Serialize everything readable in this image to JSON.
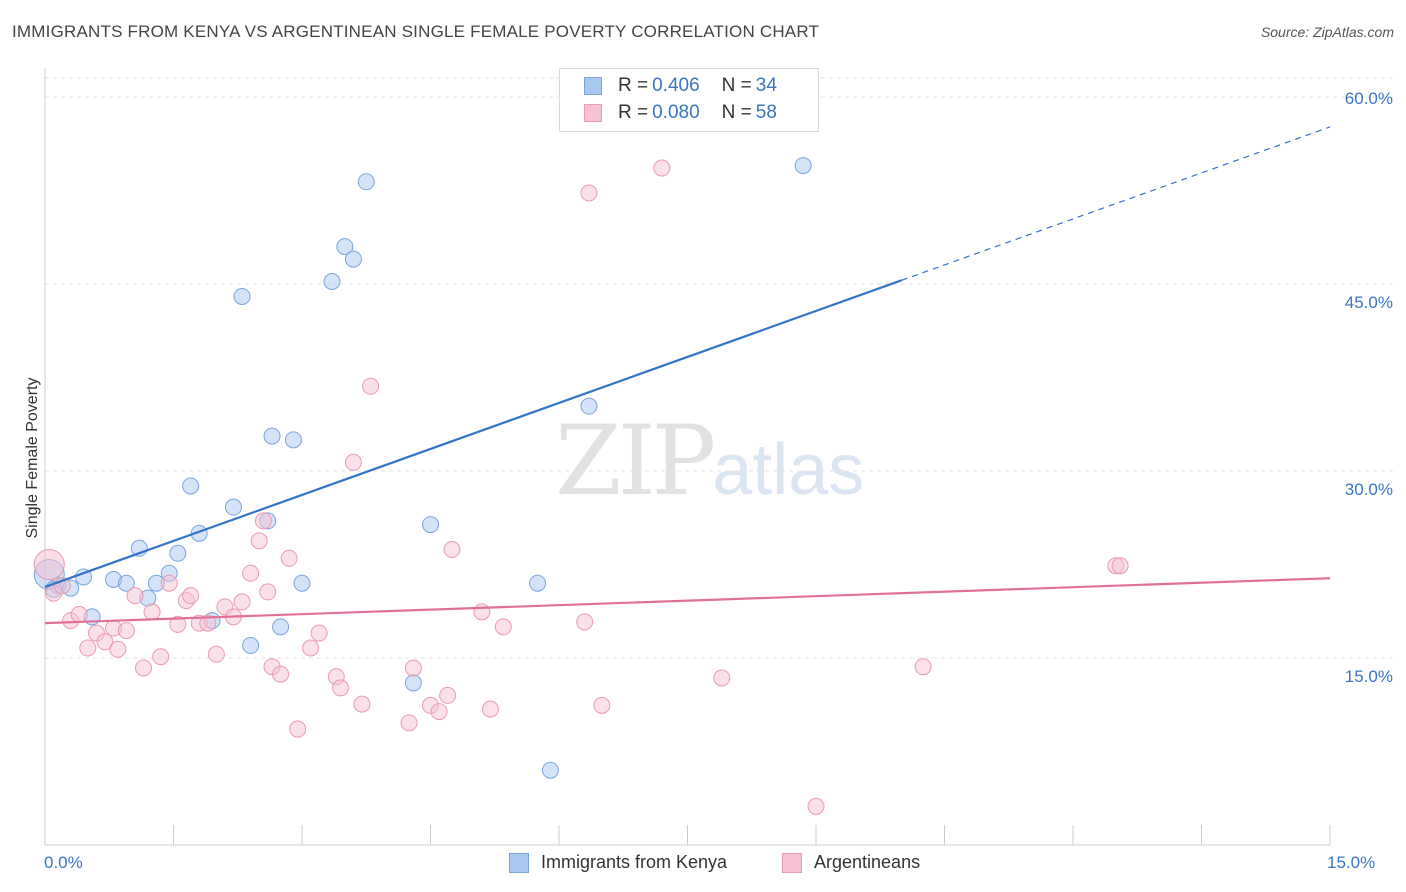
{
  "title": "IMMIGRANTS FROM KENYA VS ARGENTINEAN SINGLE FEMALE POVERTY CORRELATION CHART",
  "source": "Source: ZipAtlas.com",
  "watermark": {
    "zip": "ZIP",
    "atlas": "atlas"
  },
  "legend_top": [
    {
      "r_label": "R =",
      "r_value": "0.406",
      "n_label": "N =",
      "n_value": "34",
      "color": "#a9c8ef",
      "border": "#7aa6dd"
    },
    {
      "r_label": "R =",
      "r_value": "0.080",
      "n_label": "N =",
      "n_value": "58",
      "color": "#f6c1d3",
      "border": "#e99ab5"
    }
  ],
  "chart_data": {
    "type": "scatter",
    "title": "IMMIGRANTS FROM KENYA VS ARGENTINEAN SINGLE FEMALE POVERTY CORRELATION CHART",
    "xlabel": "",
    "ylabel": "Single Female Poverty",
    "xlim": [
      0,
      15
    ],
    "ylim": [
      0,
      60
    ],
    "x_tick_labels": [
      "0.0%",
      "15.0%"
    ],
    "y_ticks": [
      15,
      30,
      45,
      60
    ],
    "y_tick_labels": [
      "15.0%",
      "30.0%",
      "45.0%",
      "60.0%"
    ],
    "grid": true,
    "legend_position": "top-center",
    "series": [
      {
        "name": "Immigrants from Kenya",
        "color": "#a9c8ef",
        "line_color": "#3373c9",
        "points": [
          [
            0.05,
            21.7
          ],
          [
            0.15,
            20.8
          ],
          [
            0.3,
            20.6
          ],
          [
            0.45,
            21.5
          ],
          [
            0.55,
            18.3
          ],
          [
            0.8,
            21.3
          ],
          [
            0.95,
            21.0
          ],
          [
            1.1,
            23.8
          ],
          [
            1.2,
            19.8
          ],
          [
            1.3,
            21.0
          ],
          [
            1.45,
            21.8
          ],
          [
            1.55,
            23.4
          ],
          [
            1.7,
            28.8
          ],
          [
            1.8,
            25.0
          ],
          [
            1.95,
            18.0
          ],
          [
            2.2,
            27.1
          ],
          [
            2.3,
            44.0
          ],
          [
            2.4,
            16.0
          ],
          [
            2.6,
            26.0
          ],
          [
            2.65,
            32.8
          ],
          [
            2.75,
            17.5
          ],
          [
            2.9,
            32.5
          ],
          [
            3.0,
            21.0
          ],
          [
            3.35,
            45.2
          ],
          [
            3.5,
            48.0
          ],
          [
            3.6,
            47.0
          ],
          [
            3.75,
            53.2
          ],
          [
            4.3,
            13.0
          ],
          [
            4.5,
            25.7
          ],
          [
            5.75,
            21.0
          ],
          [
            5.9,
            6.0
          ],
          [
            6.35,
            35.2
          ],
          [
            8.85,
            54.5
          ],
          [
            0.1,
            20.5
          ]
        ],
        "trend": {
          "x": [
            0,
            10.0
          ],
          "y": [
            20.7,
            45.3
          ]
        },
        "trend_dashed": {
          "x": [
            10.0,
            15.0
          ],
          "y": [
            45.3,
            57.6
          ]
        }
      },
      {
        "name": "Argentineans",
        "color": "#f6c1d3",
        "line_color": "#e07099",
        "points": [
          [
            0.05,
            22.5
          ],
          [
            0.1,
            20.2
          ],
          [
            0.2,
            20.8
          ],
          [
            0.3,
            18.0
          ],
          [
            0.4,
            18.5
          ],
          [
            0.5,
            15.8
          ],
          [
            0.6,
            17.0
          ],
          [
            0.7,
            16.3
          ],
          [
            0.8,
            17.4
          ],
          [
            0.85,
            15.7
          ],
          [
            0.95,
            17.2
          ],
          [
            1.05,
            20.0
          ],
          [
            1.15,
            14.2
          ],
          [
            1.25,
            18.7
          ],
          [
            1.35,
            15.1
          ],
          [
            1.45,
            21.0
          ],
          [
            1.55,
            17.7
          ],
          [
            1.65,
            19.6
          ],
          [
            1.7,
            20.0
          ],
          [
            1.8,
            17.8
          ],
          [
            1.9,
            17.8
          ],
          [
            2.0,
            15.3
          ],
          [
            2.1,
            19.1
          ],
          [
            2.2,
            18.3
          ],
          [
            2.3,
            19.5
          ],
          [
            2.4,
            21.8
          ],
          [
            2.5,
            24.4
          ],
          [
            2.55,
            26.0
          ],
          [
            2.6,
            20.3
          ],
          [
            2.65,
            14.3
          ],
          [
            2.75,
            13.7
          ],
          [
            2.85,
            23.0
          ],
          [
            2.95,
            9.3
          ],
          [
            3.1,
            15.8
          ],
          [
            3.2,
            17.0
          ],
          [
            3.4,
            13.5
          ],
          [
            3.45,
            12.6
          ],
          [
            3.6,
            30.7
          ],
          [
            3.7,
            11.3
          ],
          [
            3.8,
            36.8
          ],
          [
            4.25,
            9.8
          ],
          [
            4.3,
            14.2
          ],
          [
            4.5,
            11.2
          ],
          [
            4.6,
            10.7
          ],
          [
            4.7,
            12.0
          ],
          [
            4.75,
            23.7
          ],
          [
            5.1,
            18.7
          ],
          [
            5.2,
            10.9
          ],
          [
            5.35,
            17.5
          ],
          [
            6.3,
            17.9
          ],
          [
            6.35,
            52.3
          ],
          [
            6.5,
            11.2
          ],
          [
            7.2,
            54.3
          ],
          [
            7.9,
            13.4
          ],
          [
            9.0,
            3.1
          ],
          [
            10.25,
            14.3
          ],
          [
            12.5,
            22.4
          ],
          [
            12.55,
            22.4
          ]
        ],
        "trend": {
          "x": [
            0,
            15.0
          ],
          "y": [
            17.8,
            21.4
          ]
        }
      }
    ]
  },
  "bottom_legend": [
    {
      "label": "Immigrants from Kenya",
      "color": "#a9c8ef",
      "border": "#7aa6dd"
    },
    {
      "label": "Argentineans",
      "color": "#f6c1d3",
      "border": "#e99ab5"
    }
  ]
}
